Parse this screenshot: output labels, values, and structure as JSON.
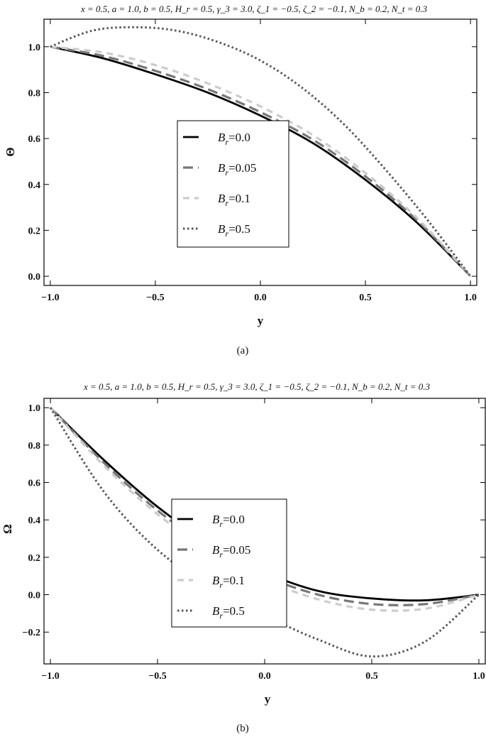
{
  "chart_data": [
    {
      "type": "line",
      "title": "x = 0.5, a = 1.0, b = 0.5, H_r = 0.5, γ_3 = 3.0, ζ_1 = −0.5, ζ_2 = −0.1, N_b = 0.2, N_t = 0.3",
      "xlabel": "y",
      "ylabel": "Θ",
      "caption": "(a)",
      "xlim": [
        -1.03,
        1.03
      ],
      "ylim": [
        -0.04,
        1.12
      ],
      "xticks": [
        -1.0,
        -0.5,
        0.0,
        0.5,
        1.0
      ],
      "xtick_labels": [
        "−1.0",
        "−0.5",
        "0.0",
        "0.5",
        "1.0"
      ],
      "yticks": [
        0.0,
        0.2,
        0.4,
        0.6,
        0.8,
        1.0
      ],
      "ytick_labels": [
        "0.0",
        "0.2",
        "0.4",
        "0.6",
        "0.8",
        "1.0"
      ],
      "legend_position": "center",
      "series": [
        {
          "name": "B_r=0.0",
          "label_main": "B",
          "label_sub": "r",
          "label_tail": "=0.0",
          "color": "#000000",
          "dash": "solid",
          "x": [
            -1.0,
            -0.75,
            -0.5,
            -0.25,
            0.0,
            0.25,
            0.5,
            0.75,
            1.0
          ],
          "y": [
            1.0,
            0.95,
            0.88,
            0.8,
            0.7,
            0.58,
            0.42,
            0.23,
            0.0
          ]
        },
        {
          "name": "B_r=0.05",
          "label_main": "B",
          "label_sub": "r",
          "label_tail": "=0.05",
          "color": "#777777",
          "dash": "long",
          "x": [
            -1.0,
            -0.75,
            -0.5,
            -0.25,
            0.0,
            0.25,
            0.5,
            0.75,
            1.0
          ],
          "y": [
            1.0,
            0.96,
            0.895,
            0.815,
            0.715,
            0.595,
            0.435,
            0.24,
            0.0
          ]
        },
        {
          "name": "B_r=0.1",
          "label_main": "B",
          "label_sub": "r",
          "label_tail": "=0.1",
          "color": "#cccccc",
          "dash": "dash",
          "x": [
            -1.0,
            -0.75,
            -0.5,
            -0.25,
            0.0,
            0.25,
            0.5,
            0.75,
            1.0
          ],
          "y": [
            1.0,
            0.975,
            0.92,
            0.84,
            0.74,
            0.615,
            0.45,
            0.25,
            0.0
          ]
        },
        {
          "name": "B_r=0.5",
          "label_main": "B",
          "label_sub": "r",
          "label_tail": "=0.5",
          "color": "#555555",
          "dash": "dot",
          "x": [
            -1.0,
            -0.8,
            -0.6,
            -0.4,
            -0.2,
            0.0,
            0.2,
            0.4,
            0.6,
            0.8,
            1.0
          ],
          "y": [
            1.0,
            1.07,
            1.085,
            1.07,
            1.02,
            0.94,
            0.82,
            0.66,
            0.46,
            0.24,
            0.0
          ]
        }
      ]
    },
    {
      "type": "line",
      "title": "x = 0.5, a = 1.0, b = 0.5, H_r = 0.5, γ_3 = 3.0, ζ_1 = −0.5, ζ_2 = −0.1, N_b = 0.2, N_t = 0.3",
      "xlabel": "y",
      "ylabel": "Ω",
      "caption": "(b)",
      "xlim": [
        -1.03,
        1.03
      ],
      "ylim": [
        -0.37,
        1.05
      ],
      "xticks": [
        -1.0,
        -0.5,
        0.0,
        0.5,
        1.0
      ],
      "xtick_labels": [
        "−1.0",
        "−0.5",
        "0.0",
        "0.5",
        "1.0"
      ],
      "yticks": [
        -0.2,
        0.0,
        0.2,
        0.4,
        0.6,
        0.8,
        1.0
      ],
      "ytick_labels": [
        "−0.2",
        "0.0",
        "0.2",
        "0.4",
        "0.6",
        "0.8",
        "1.0"
      ],
      "legend_position": "center",
      "series": [
        {
          "name": "B_r=0.0",
          "label_main": "B",
          "label_sub": "r",
          "label_tail": "=0.0",
          "color": "#000000",
          "dash": "solid",
          "x": [
            -1.0,
            -0.75,
            -0.5,
            -0.25,
            0.0,
            0.25,
            0.5,
            0.75,
            1.0
          ],
          "y": [
            1.0,
            0.72,
            0.47,
            0.27,
            0.12,
            0.02,
            -0.02,
            -0.03,
            0.0
          ]
        },
        {
          "name": "B_r=0.05",
          "label_main": "B",
          "label_sub": "r",
          "label_tail": "=0.05",
          "color": "#777777",
          "dash": "long",
          "x": [
            -1.0,
            -0.75,
            -0.5,
            -0.25,
            0.0,
            0.25,
            0.5,
            0.75,
            1.0
          ],
          "y": [
            1.0,
            0.705,
            0.45,
            0.25,
            0.1,
            0.0,
            -0.05,
            -0.05,
            0.0
          ]
        },
        {
          "name": "B_r=0.1",
          "label_main": "B",
          "label_sub": "r",
          "label_tail": "=0.1",
          "color": "#cccccc",
          "dash": "dash",
          "x": [
            -1.0,
            -0.75,
            -0.5,
            -0.25,
            0.0,
            0.25,
            0.5,
            0.75,
            1.0
          ],
          "y": [
            1.0,
            0.69,
            0.43,
            0.23,
            0.08,
            -0.025,
            -0.08,
            -0.075,
            0.0
          ]
        },
        {
          "name": "B_r=0.5",
          "label_main": "B",
          "label_sub": "r",
          "label_tail": "=0.5",
          "color": "#555555",
          "dash": "dot",
          "x": [
            -1.0,
            -0.75,
            -0.5,
            -0.25,
            0.0,
            0.25,
            0.5,
            0.75,
            1.0
          ],
          "y": [
            1.0,
            0.55,
            0.24,
            0.04,
            -0.11,
            -0.24,
            -0.33,
            -0.25,
            0.0
          ]
        }
      ]
    }
  ]
}
